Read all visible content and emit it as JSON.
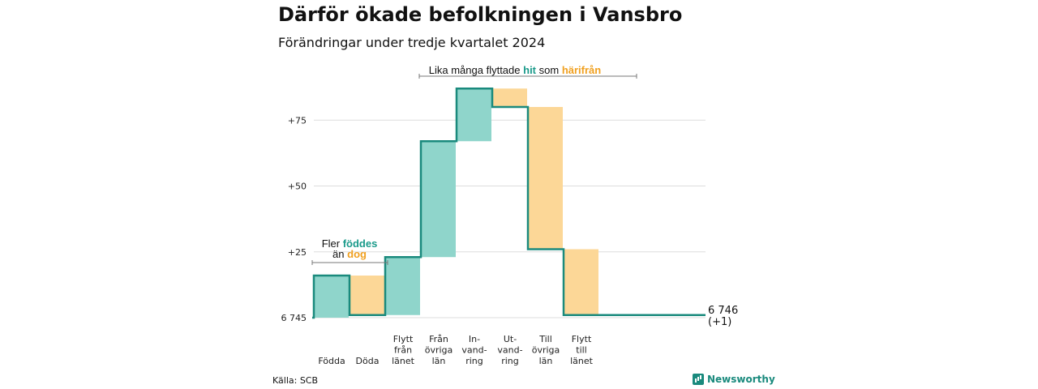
{
  "title": "Därför ökade befolkningen i Vansbro",
  "subtitle": "Förändringar under tredje kvartalet 2024",
  "source": "Källa: SCB",
  "brand": "Newsworthy",
  "colors": {
    "increase": "#8fd5cb",
    "decrease": "#fcd797",
    "line": "#1a8a7d",
    "hit": "#1a9a8a",
    "from": "#f0a020"
  },
  "annotations": {
    "births": {
      "line1_prefix": "Fler ",
      "line1_hl": "föddes",
      "line2_prefix": "än ",
      "line2_hl": "dog"
    },
    "migration": {
      "prefix": "Lika många flyttade ",
      "hl1": "hit",
      "middle": " som ",
      "hl2": "härifrån"
    }
  },
  "end_label": {
    "value": "6 746",
    "change": "(+1)"
  },
  "chart_data": {
    "type": "waterfall",
    "base": 6745,
    "y_ticks": [
      {
        "value": 0,
        "label": "6 745"
      },
      {
        "value": 25,
        "label": "+25"
      },
      {
        "value": 50,
        "label": "+50"
      },
      {
        "value": 75,
        "label": "+75"
      }
    ],
    "ylim": [
      0,
      88
    ],
    "categories": [
      {
        "label": [
          "Födda"
        ],
        "change": 16
      },
      {
        "label": [
          "Döda"
        ],
        "change": -15
      },
      {
        "label": [
          "Flytt",
          "från",
          "länet"
        ],
        "change": 22
      },
      {
        "label": [
          "Från",
          "övriga",
          "län"
        ],
        "change": 44
      },
      {
        "label": [
          "In-",
          "vand-",
          "ring"
        ],
        "change": 20
      },
      {
        "label": [
          "Ut-",
          "vand-",
          "ring"
        ],
        "change": -7
      },
      {
        "label": [
          "Till",
          "övriga",
          "län"
        ],
        "change": -54
      },
      {
        "label": [
          "Flytt",
          "till",
          "länet"
        ],
        "change": -25
      }
    ]
  }
}
